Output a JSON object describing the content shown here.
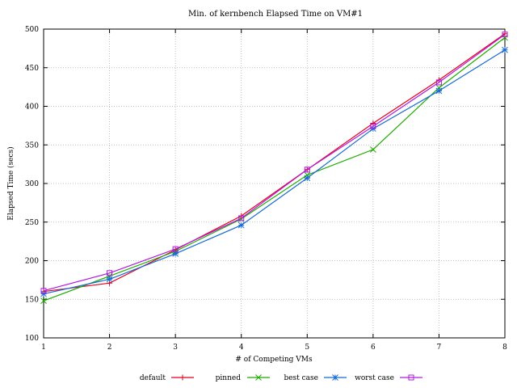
{
  "chart_data": {
    "type": "line",
    "title": "Min. of kernbench Elapsed Time on VM#1",
    "xlabel": "# of Competing VMs",
    "ylabel": "Elapsed Time (secs)",
    "x": [
      1,
      2,
      3,
      4,
      5,
      6,
      7,
      8
    ],
    "xlim": [
      1,
      8
    ],
    "ylim": [
      100,
      500
    ],
    "yticks": [
      100,
      150,
      200,
      250,
      300,
      350,
      400,
      450,
      500
    ],
    "grid": true,
    "legend_position": "bottom",
    "series": [
      {
        "name": "default",
        "color": "#e4001b",
        "marker": "plus",
        "values": [
          160,
          171,
          214,
          258,
          318,
          378,
          434,
          494
        ]
      },
      {
        "name": "pinned",
        "color": "#1faa00",
        "marker": "x",
        "values": [
          148,
          180,
          212,
          254,
          311,
          344,
          424,
          489
        ]
      },
      {
        "name": "best case",
        "color": "#1469d6",
        "marker": "star",
        "values": [
          157,
          176,
          209,
          246,
          307,
          371,
          420,
          473
        ]
      },
      {
        "name": "worst case",
        "color": "#b01ae0",
        "marker": "square",
        "values": [
          161,
          184,
          215,
          255,
          318,
          374,
          431,
          493
        ]
      }
    ]
  }
}
